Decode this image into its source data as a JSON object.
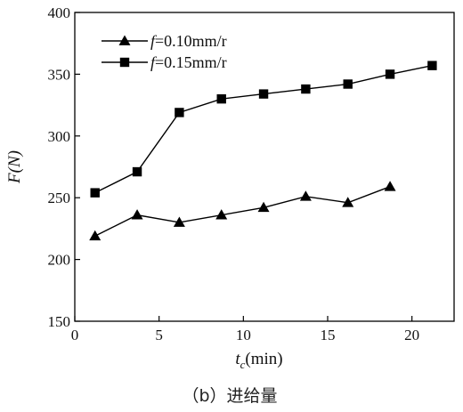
{
  "chart_data": {
    "type": "line",
    "caption": "（b）进给量",
    "xlabel": {
      "main": "t",
      "sub": "c",
      "rest": "(min)"
    },
    "ylabel": "F(N)",
    "xlim": [
      0,
      22.5
    ],
    "ylim": [
      150,
      400
    ],
    "xticks": [
      0,
      5,
      10,
      15,
      20
    ],
    "yticks": [
      150,
      200,
      250,
      300,
      350,
      400
    ],
    "grid": false,
    "legend_position": "top-left",
    "series": [
      {
        "name": "f=0.10mm/r",
        "name_parts": {
          "italic": "f",
          "rest": "=0.10mm/r"
        },
        "marker": "triangle",
        "color": "#000000",
        "x": [
          1.2,
          3.7,
          6.2,
          8.7,
          11.2,
          13.7,
          16.2,
          18.7
        ],
        "y": [
          219,
          236,
          230,
          236,
          242,
          251,
          246,
          259
        ]
      },
      {
        "name": "f=0.15mm/r",
        "name_parts": {
          "italic": "f",
          "rest": "=0.15mm/r"
        },
        "marker": "square",
        "color": "#000000",
        "x": [
          1.2,
          3.7,
          6.2,
          8.7,
          11.2,
          13.7,
          16.2,
          18.7,
          21.2
        ],
        "y": [
          254,
          271,
          319,
          330,
          334,
          338,
          342,
          350,
          357
        ]
      }
    ]
  }
}
